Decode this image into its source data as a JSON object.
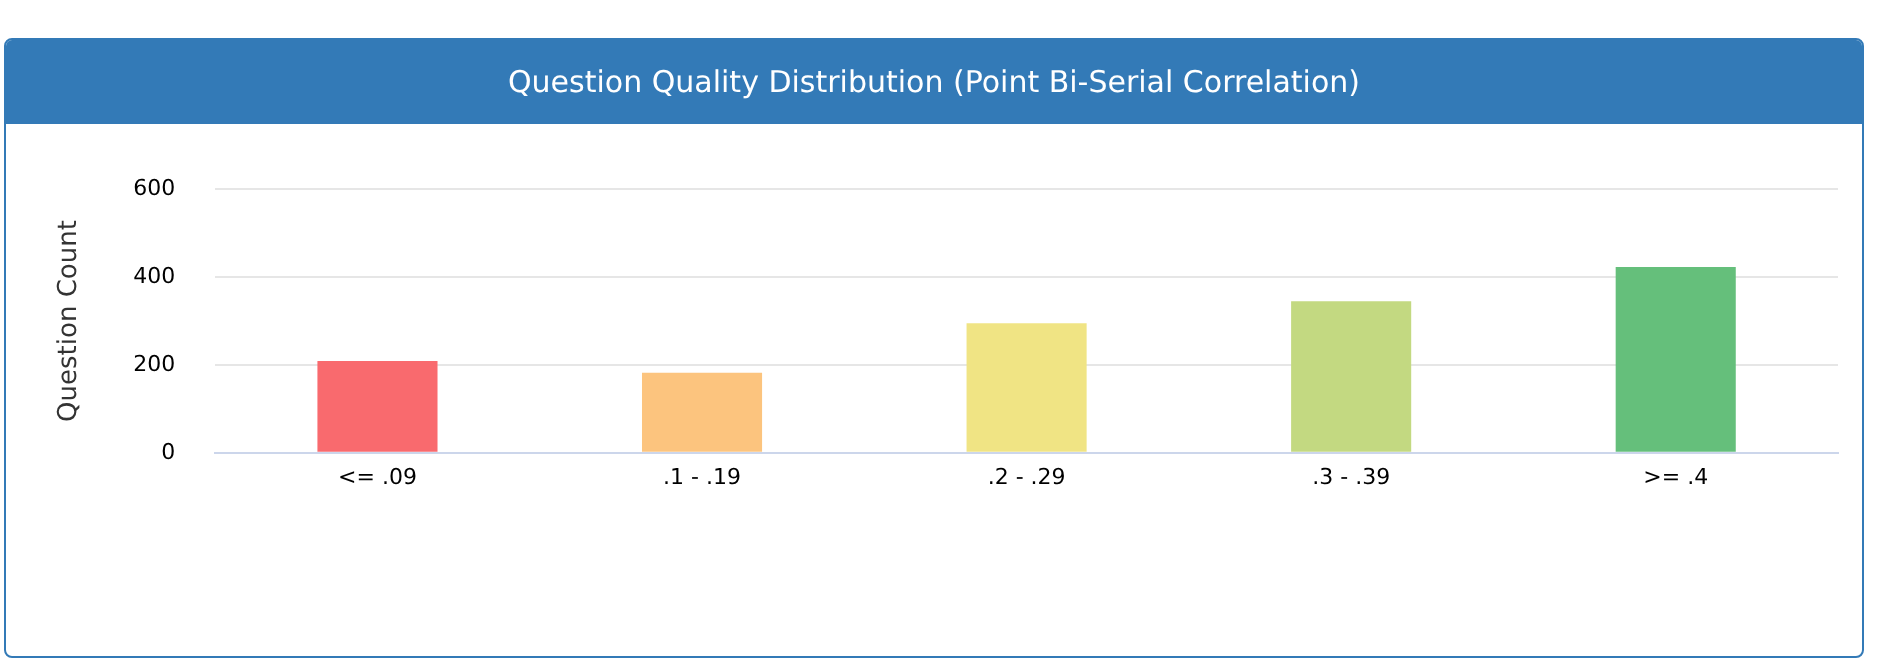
{
  "chart_data": {
    "type": "bar",
    "title": "Question Quality Distribution (Point Bi-Serial Correlation)",
    "ylabel": "Question Count",
    "categories": [
      "<= .09",
      ".1 - .19",
      ".2 - .29",
      ".3 - .39",
      ">= .4"
    ],
    "values": [
      209,
      182,
      295,
      345,
      423
    ],
    "colors": [
      "#f96a6e",
      "#fcc47e",
      "#f0e484",
      "#c3d981",
      "#65bf7b"
    ],
    "ylim": [
      0,
      600
    ],
    "yticks": [
      0,
      200,
      400,
      600
    ],
    "grid": "y",
    "legend": false
  }
}
